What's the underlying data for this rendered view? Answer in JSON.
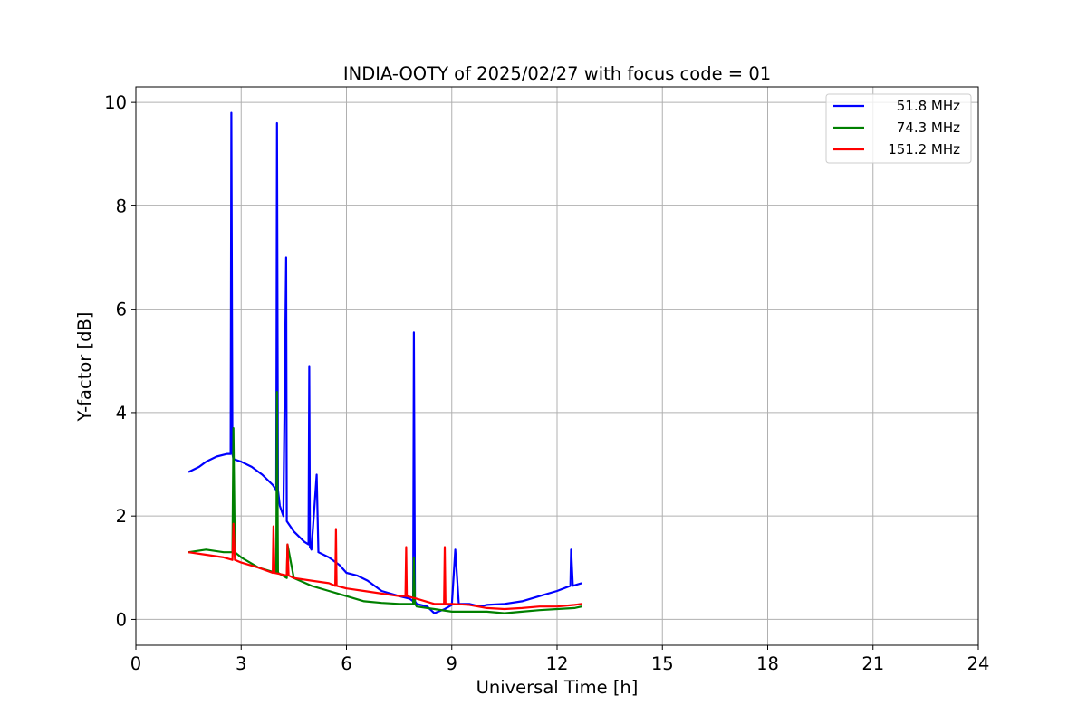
{
  "chart_data": {
    "type": "line",
    "title": "INDIA-OOTY of 2025/02/27 with focus code = 01",
    "xlabel": "Universal Time [h]",
    "ylabel": "Y-factor [dB]",
    "xlim": [
      0,
      24
    ],
    "ylim": [
      -0.5,
      10.3
    ],
    "xticks": [
      0,
      3,
      6,
      9,
      12,
      15,
      18,
      21,
      24
    ],
    "yticks": [
      0,
      2,
      4,
      6,
      8,
      10
    ],
    "grid": true,
    "legend_position": "top-right",
    "series": [
      {
        "name": "51.8 MHz",
        "color": "#0000ff",
        "x": [
          1.5,
          1.8,
          2.0,
          2.3,
          2.6,
          2.7,
          2.72,
          2.75,
          2.78,
          3.0,
          3.3,
          3.6,
          3.9,
          4.0,
          4.02,
          4.05,
          4.1,
          4.2,
          4.28,
          4.3,
          4.5,
          4.8,
          4.92,
          4.94,
          4.96,
          5.0,
          5.15,
          5.2,
          5.5,
          5.8,
          6.0,
          6.3,
          6.6,
          7.0,
          7.5,
          7.8,
          7.9,
          7.92,
          7.95,
          8.0,
          8.3,
          8.5,
          8.8,
          9.0,
          9.1,
          9.2,
          9.5,
          9.8,
          10.0,
          10.5,
          11.0,
          11.5,
          12.0,
          12.38,
          12.4,
          12.45,
          12.7
        ],
        "values": [
          2.85,
          2.95,
          3.05,
          3.15,
          3.2,
          3.2,
          9.8,
          3.2,
          3.1,
          3.05,
          2.95,
          2.8,
          2.6,
          2.5,
          9.6,
          2.5,
          2.2,
          2.0,
          7.0,
          1.9,
          1.7,
          1.5,
          1.45,
          4.9,
          1.4,
          1.35,
          2.8,
          1.3,
          1.2,
          1.05,
          0.9,
          0.85,
          0.75,
          0.55,
          0.45,
          0.4,
          0.35,
          5.55,
          0.35,
          0.3,
          0.25,
          0.12,
          0.2,
          0.28,
          1.35,
          0.3,
          0.3,
          0.25,
          0.28,
          0.3,
          0.35,
          0.45,
          0.55,
          0.65,
          1.35,
          0.65,
          0.7
        ]
      },
      {
        "name": "74.3 MHz",
        "color": "#008000",
        "x": [
          1.5,
          2.0,
          2.5,
          2.75,
          2.78,
          2.82,
          3.0,
          3.5,
          4.0,
          4.02,
          4.05,
          4.3,
          4.32,
          4.5,
          5.0,
          5.5,
          6.0,
          6.5,
          7.0,
          7.5,
          7.9,
          7.92,
          7.95,
          8.0,
          8.5,
          9.0,
          9.5,
          10.0,
          10.5,
          11.0,
          11.5,
          12.0,
          12.5,
          12.7
        ],
        "values": [
          1.3,
          1.35,
          1.3,
          1.3,
          3.7,
          1.3,
          1.2,
          1.0,
          0.9,
          4.4,
          0.9,
          0.8,
          1.45,
          0.8,
          0.65,
          0.55,
          0.45,
          0.35,
          0.32,
          0.3,
          0.3,
          1.2,
          0.3,
          0.25,
          0.2,
          0.15,
          0.15,
          0.15,
          0.12,
          0.15,
          0.18,
          0.2,
          0.22,
          0.25
        ]
      },
      {
        "name": "151.2 MHz",
        "color": "#ff0000",
        "x": [
          1.5,
          2.0,
          2.5,
          2.75,
          2.78,
          2.82,
          3.0,
          3.5,
          3.9,
          3.92,
          3.95,
          4.3,
          4.32,
          4.35,
          4.5,
          5.0,
          5.5,
          5.68,
          5.7,
          5.72,
          6.0,
          6.5,
          7.0,
          7.5,
          7.68,
          7.7,
          7.72,
          8.0,
          8.5,
          8.78,
          8.8,
          8.82,
          9.0,
          9.5,
          10.0,
          10.5,
          11.0,
          11.5,
          12.0,
          12.5,
          12.7
        ],
        "values": [
          1.3,
          1.25,
          1.2,
          1.15,
          1.85,
          1.15,
          1.1,
          1.0,
          0.9,
          1.8,
          0.9,
          0.85,
          1.45,
          0.85,
          0.8,
          0.75,
          0.7,
          0.65,
          1.75,
          0.65,
          0.6,
          0.55,
          0.5,
          0.45,
          0.45,
          1.4,
          0.45,
          0.4,
          0.3,
          0.3,
          1.4,
          0.3,
          0.3,
          0.28,
          0.22,
          0.2,
          0.22,
          0.25,
          0.25,
          0.28,
          0.3
        ]
      }
    ]
  }
}
